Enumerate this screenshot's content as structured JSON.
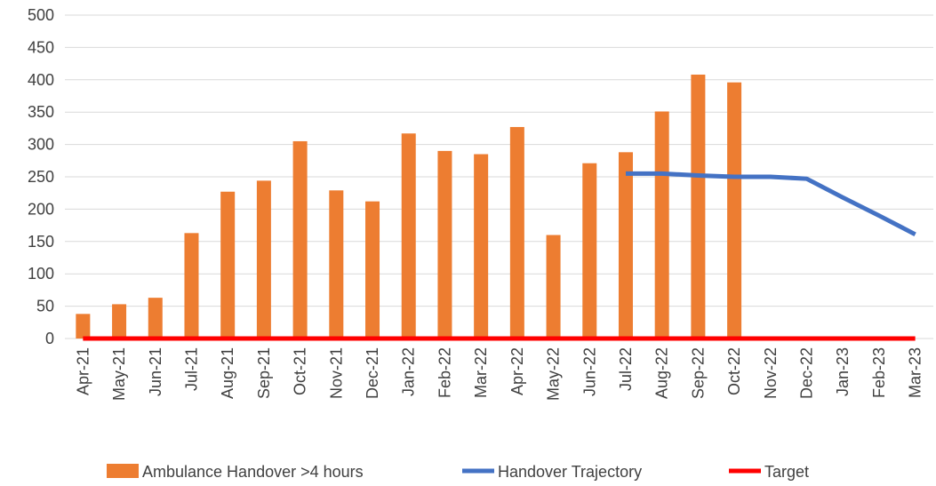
{
  "chart_data": {
    "type": "bar",
    "categories": [
      "Apr-21",
      "May-21",
      "Jun-21",
      "Jul-21",
      "Aug-21",
      "Sep-21",
      "Oct-21",
      "Nov-21",
      "Dec-21",
      "Jan-22",
      "Feb-22",
      "Mar-22",
      "Apr-22",
      "May-22",
      "Jun-22",
      "Jul-22",
      "Aug-22",
      "Sep-22",
      "Oct-22",
      "Nov-22",
      "Dec-22",
      "Jan-23",
      "Feb-23",
      "Mar-23"
    ],
    "series": [
      {
        "name": "Ambulance Handover >4 hours",
        "type": "bar",
        "color": "#ed7d31",
        "values": [
          38,
          53,
          63,
          163,
          227,
          244,
          305,
          229,
          212,
          317,
          290,
          285,
          327,
          160,
          271,
          288,
          351,
          408,
          396,
          null,
          null,
          null,
          null,
          null
        ]
      },
      {
        "name": "Handover Trajectory",
        "type": "line",
        "color": "#4472c4",
        "values": [
          null,
          null,
          null,
          null,
          null,
          null,
          null,
          null,
          null,
          null,
          null,
          null,
          null,
          null,
          null,
          255,
          255,
          252,
          250,
          250,
          247,
          218,
          190,
          161
        ]
      },
      {
        "name": "Target",
        "type": "line",
        "color": "#ff0000",
        "values": [
          0,
          0,
          0,
          0,
          0,
          0,
          0,
          0,
          0,
          0,
          0,
          0,
          0,
          0,
          0,
          0,
          0,
          0,
          0,
          0,
          0,
          0,
          0,
          0
        ]
      }
    ],
    "ylim": [
      0,
      500
    ],
    "yticks": [
      0,
      50,
      100,
      150,
      200,
      250,
      300,
      350,
      400,
      450,
      500
    ],
    "grid": true,
    "legend": "bottom"
  }
}
